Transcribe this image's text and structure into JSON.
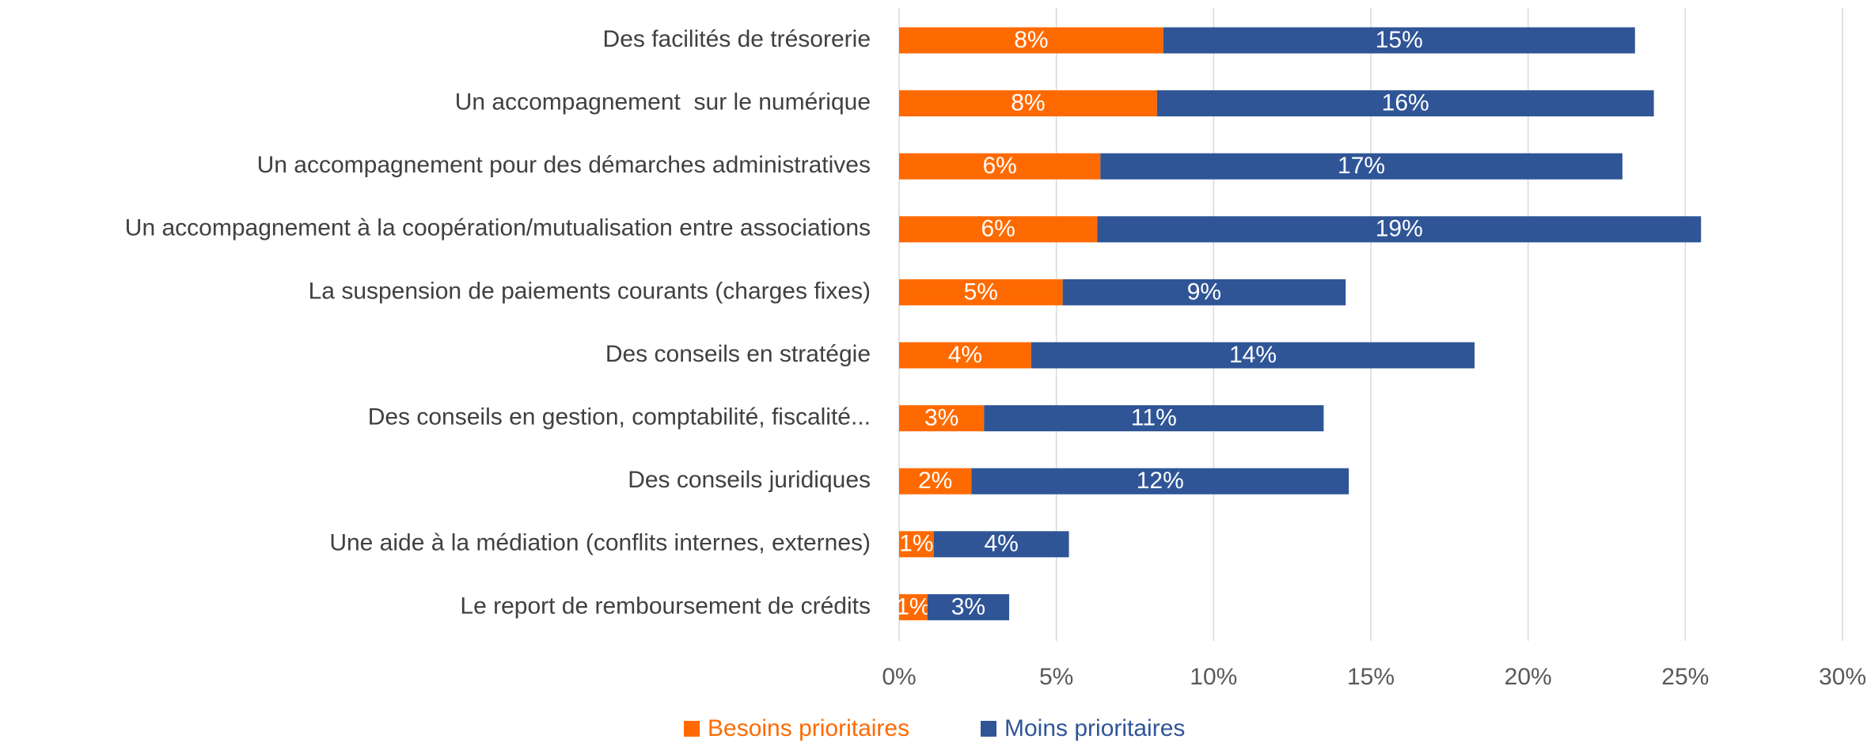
{
  "chart_data": {
    "type": "stacked-bar-horizontal",
    "categories": [
      "Des facilités de trésorerie",
      "Un accompagnement  sur le numérique",
      "Un accompagnement pour des démarches administratives",
      "Un accompagnement à la coopération/mutualisation entre associations",
      "La suspension de paiements courants (charges fixes)",
      "Des conseils en stratégie",
      "Des conseils en gestion, comptabilité, fiscalité...",
      "Des conseils juridiques",
      "Une aide à la médiation (conflits internes, externes)",
      "Le report de remboursement de crédits"
    ],
    "series": [
      {
        "name": "Besoins prioritaires",
        "color": "#ff6a00",
        "values": [
          8.4,
          8.2,
          6.4,
          6.3,
          5.2,
          4.2,
          2.7,
          2.3,
          1.1,
          0.9
        ],
        "value_labels": [
          "8%",
          "8%",
          "6%",
          "6%",
          "5%",
          "4%",
          "3%",
          "2%",
          "1%",
          "1%"
        ]
      },
      {
        "name": "Moins prioritaires",
        "color": "#2f5597",
        "values": [
          15.0,
          15.8,
          16.6,
          19.2,
          9.0,
          14.1,
          10.8,
          12.0,
          4.3,
          2.6
        ],
        "value_labels": [
          "15%",
          "16%",
          "17%",
          "19%",
          "9%",
          "14%",
          "11%",
          "12%",
          "4%",
          "3%"
        ]
      }
    ],
    "xlim": [
      0,
      30
    ],
    "xticks": [
      {
        "value": 0,
        "label": "0%"
      },
      {
        "value": 5,
        "label": "5%"
      },
      {
        "value": 10,
        "label": "10%"
      },
      {
        "value": 15,
        "label": "15%"
      },
      {
        "value": 20,
        "label": "20%"
      },
      {
        "value": 25,
        "label": "25%"
      },
      {
        "value": 30,
        "label": "30%"
      }
    ],
    "grid": true,
    "legend": "bottom"
  }
}
